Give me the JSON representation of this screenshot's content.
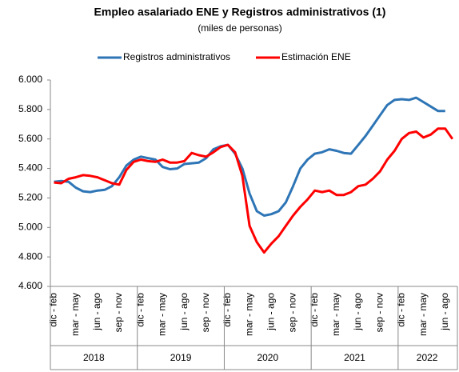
{
  "chart_data": {
    "type": "line",
    "title": "Empleo asalariado ENE y Registros administrativos (1)",
    "subtitle": "(miles de personas)",
    "categories": [
      "dic - feb",
      null,
      null,
      "mar - may",
      null,
      null,
      "jun - ago",
      null,
      null,
      "sep - nov",
      null,
      null,
      "dic - feb",
      null,
      null,
      "mar - may",
      null,
      null,
      "jun - ago",
      null,
      null,
      "sep - nov",
      null,
      null,
      "dic - feb",
      null,
      null,
      "mar - may",
      null,
      null,
      "jun - ago",
      null,
      null,
      "sep - nov",
      null,
      null,
      "dic - feb",
      null,
      null,
      "mar - may",
      null,
      null,
      "jun - ago",
      null,
      null,
      "sep - nov",
      null,
      null,
      "dic - feb",
      null,
      null,
      "mar - may",
      null,
      null,
      "jun - ago",
      null
    ],
    "years": [
      "2018",
      "2019",
      "2020",
      "2021",
      "2022"
    ],
    "series": [
      {
        "name": "Registros administrativos",
        "color": "#2e75b6",
        "values": [
          5310,
          5315,
          5310,
          5270,
          5245,
          5240,
          5250,
          5255,
          5280,
          5340,
          5420,
          5460,
          5480,
          5470,
          5460,
          5410,
          5395,
          5400,
          5430,
          5435,
          5440,
          5470,
          5530,
          5550,
          5560,
          5500,
          5400,
          5230,
          5110,
          5080,
          5090,
          5110,
          5170,
          5280,
          5400,
          5460,
          5500,
          5510,
          5530,
          5520,
          5505,
          5500,
          5560,
          5620,
          5690,
          5760,
          5830,
          5865,
          5870,
          5865,
          5880,
          5850,
          5820,
          5790,
          5790,
          null
        ]
      },
      {
        "name": "Estimación ENE",
        "color": "#ff0000",
        "values": [
          5305,
          5300,
          5330,
          5340,
          5355,
          5350,
          5340,
          5320,
          5300,
          5290,
          5390,
          5445,
          5460,
          5450,
          5445,
          5460,
          5440,
          5440,
          5450,
          5505,
          5490,
          5480,
          5510,
          5545,
          5560,
          5510,
          5350,
          5010,
          4900,
          4830,
          4890,
          4940,
          5010,
          5080,
          5140,
          5190,
          5250,
          5240,
          5250,
          5220,
          5220,
          5240,
          5280,
          5290,
          5330,
          5380,
          5460,
          5520,
          5600,
          5640,
          5650,
          5610,
          5630,
          5670,
          5670,
          5600
        ]
      }
    ],
    "ylim": [
      4600,
      6000
    ],
    "yticks": [
      {
        "value": 4600,
        "label": "4.600"
      },
      {
        "value": 4800,
        "label": "4.800"
      },
      {
        "value": 5000,
        "label": "5.000"
      },
      {
        "value": 5200,
        "label": "5.200"
      },
      {
        "value": 5400,
        "label": "5.400"
      },
      {
        "value": 5600,
        "label": "5.600"
      },
      {
        "value": 5800,
        "label": "5.800"
      },
      {
        "value": 6000,
        "label": "6.000"
      }
    ],
    "legend": "top"
  }
}
